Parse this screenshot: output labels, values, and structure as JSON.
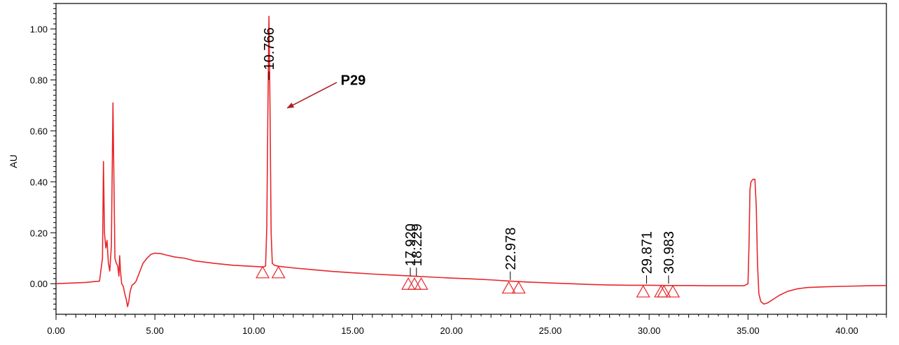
{
  "chart_data": {
    "type": "line",
    "title": "",
    "xlabel": "",
    "ylabel": "AU",
    "xlim": [
      0,
      42
    ],
    "ylim": [
      -0.12,
      1.1
    ],
    "x_ticks": [
      "0.00",
      "5.00",
      "10.00",
      "15.00",
      "20.00",
      "25.00",
      "30.00",
      "35.00",
      "40.00"
    ],
    "y_ticks": [
      "0.00",
      "0.20",
      "0.40",
      "0.60",
      "0.80",
      "1.00"
    ],
    "grid": false,
    "line_color": "#e8262b",
    "series": [
      {
        "x": [
          0,
          1.5,
          2.2,
          2.35,
          2.4,
          2.45,
          2.52,
          2.58,
          2.65,
          2.72,
          2.8,
          2.88,
          2.93,
          2.98,
          3.05,
          3.12,
          3.18,
          3.22,
          3.26,
          3.32,
          3.4,
          3.48,
          3.55,
          3.62,
          3.68,
          3.75,
          3.85,
          3.95,
          4.05,
          4.2,
          4.4,
          4.6,
          4.8,
          5.0,
          5.3,
          5.6,
          6.0,
          6.5,
          7.0,
          8.0,
          9.0,
          10.0,
          10.5,
          10.6,
          10.66,
          10.72,
          10.77,
          10.82,
          10.88,
          10.94,
          11.05,
          11.3,
          12.0,
          13.0,
          14.0,
          15.0,
          16.0,
          17.0,
          18.0,
          19.0,
          20.0,
          21.0,
          22.0,
          23.0,
          24.0,
          25.0,
          26.0,
          27.0,
          28.0,
          29.0,
          30.0,
          31.0,
          32.0,
          33.0,
          34.0,
          34.8,
          35.0,
          35.05,
          35.1,
          35.15,
          35.25,
          35.35,
          35.42,
          35.48,
          35.55,
          35.65,
          35.8,
          36.0,
          36.3,
          36.6,
          37.0,
          37.5,
          38.0,
          39.0,
          40.0,
          41.0,
          42.0
        ],
        "y": [
          0.0,
          0.005,
          0.01,
          0.1,
          0.48,
          0.2,
          0.14,
          0.17,
          0.08,
          0.05,
          0.15,
          0.71,
          0.4,
          0.1,
          0.08,
          0.07,
          0.03,
          0.11,
          0.05,
          0.0,
          -0.01,
          -0.04,
          -0.06,
          -0.09,
          -0.07,
          -0.03,
          -0.005,
          0.0,
          0.01,
          0.04,
          0.08,
          0.1,
          0.115,
          0.12,
          0.118,
          0.112,
          0.105,
          0.1,
          0.09,
          0.08,
          0.072,
          0.068,
          0.066,
          0.07,
          0.22,
          0.7,
          1.05,
          0.72,
          0.2,
          0.08,
          0.072,
          0.068,
          0.062,
          0.055,
          0.048,
          0.043,
          0.038,
          0.034,
          0.03,
          0.026,
          0.022,
          0.019,
          0.015,
          0.01,
          0.006,
          0.003,
          0.0,
          -0.003,
          -0.005,
          -0.006,
          -0.006,
          -0.007,
          -0.007,
          -0.008,
          -0.008,
          -0.008,
          0.0,
          0.15,
          0.37,
          0.4,
          0.41,
          0.41,
          0.3,
          0.08,
          -0.04,
          -0.07,
          -0.08,
          -0.075,
          -0.06,
          -0.045,
          -0.03,
          -0.02,
          -0.015,
          -0.012,
          -0.01,
          -0.008,
          -0.007
        ]
      }
    ],
    "peaks": [
      {
        "label": "10.766",
        "x": 10.766,
        "label_y": 0.8
      },
      {
        "label": "17.920",
        "x": 17.92,
        "label_y": 0.03
      },
      {
        "label": "18.229",
        "x": 18.229,
        "label_y": 0.03
      },
      {
        "label": "22.978",
        "x": 22.978,
        "label_y": 0.015
      },
      {
        "label": "29.871",
        "x": 29.871,
        "label_y": 0.0
      },
      {
        "label": "30.983",
        "x": 30.983,
        "label_y": 0.0
      }
    ],
    "markers": [
      {
        "x": 10.45,
        "y": 0.045
      },
      {
        "x": 11.25,
        "y": 0.045
      },
      {
        "x": 17.82,
        "y": 0.0
      },
      {
        "x": 18.13,
        "y": 0.0
      },
      {
        "x": 18.47,
        "y": 0.0
      },
      {
        "x": 22.9,
        "y": -0.015
      },
      {
        "x": 23.4,
        "y": -0.015
      },
      {
        "x": 29.7,
        "y": -0.03
      },
      {
        "x": 30.6,
        "y": -0.03
      },
      {
        "x": 30.75,
        "y": -0.03
      },
      {
        "x": 31.2,
        "y": -0.03
      }
    ],
    "annotation": {
      "text": "P29",
      "color": "#b01f24",
      "arrow_to_x": 11.7,
      "arrow_to_y": 0.69,
      "arrow_from_x": 14.2,
      "arrow_from_y": 0.79,
      "text_x": 14.4,
      "text_y": 0.8
    }
  }
}
